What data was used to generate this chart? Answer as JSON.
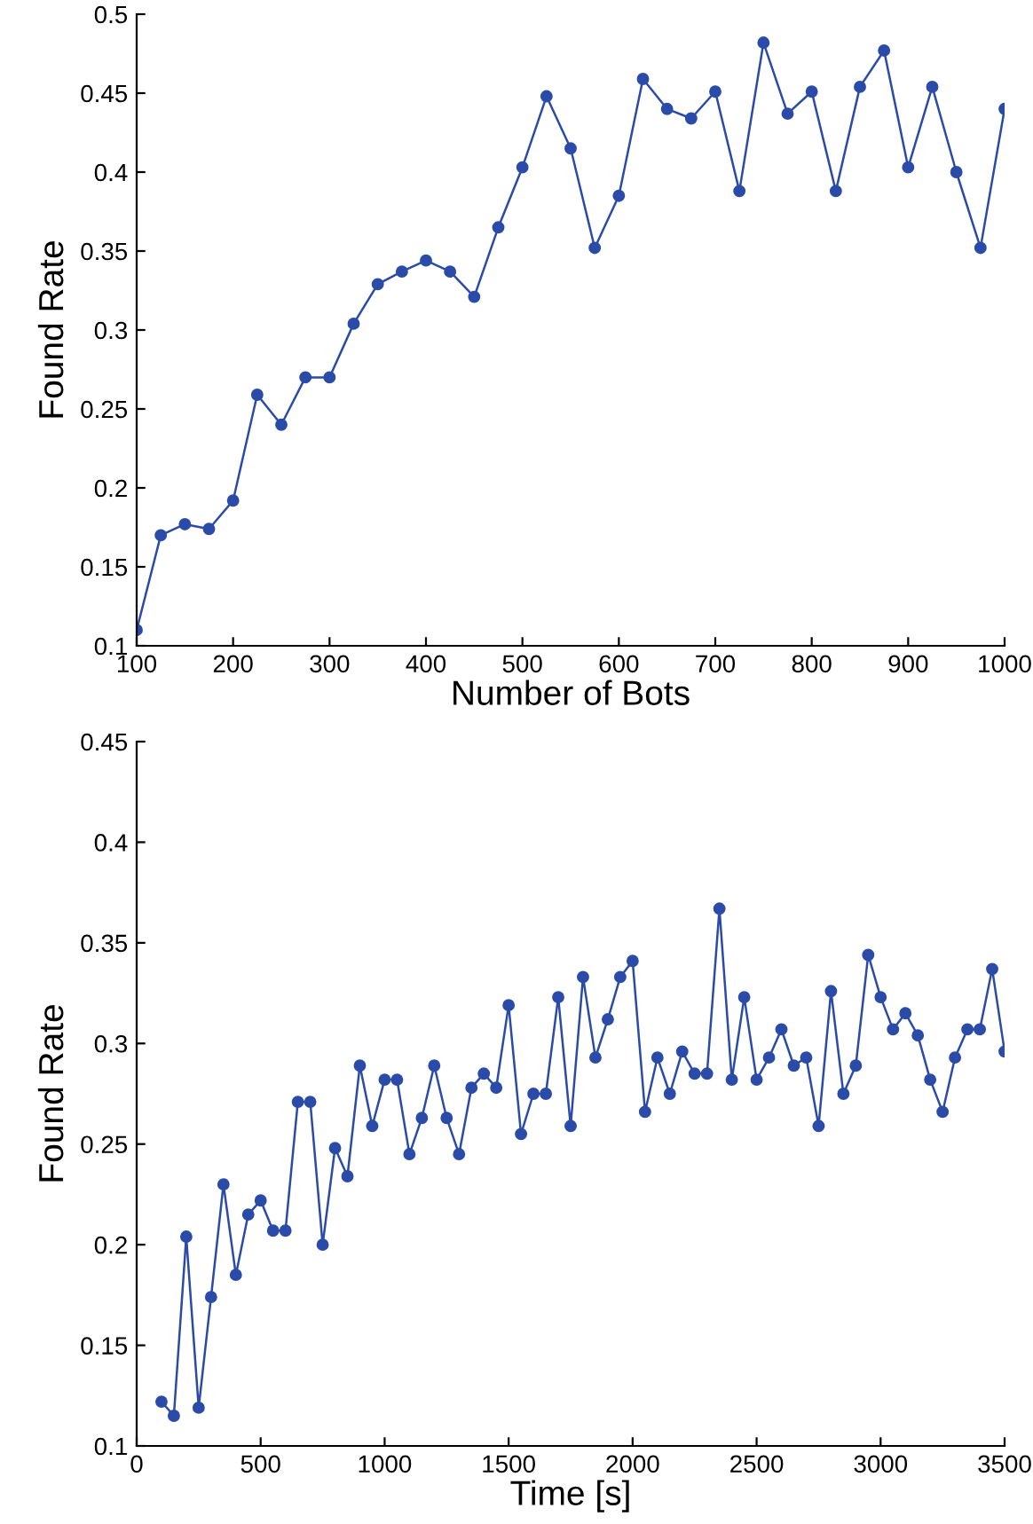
{
  "chart_data": [
    {
      "type": "line",
      "xlabel": "Number of Bots",
      "ylabel": "Found Rate",
      "marker": "circle",
      "line_style": "solid",
      "grid": false,
      "x": [
        100,
        125,
        150,
        175,
        200,
        225,
        250,
        275,
        300,
        325,
        350,
        375,
        400,
        425,
        450,
        475,
        500,
        525,
        550,
        575,
        600,
        625,
        650,
        675,
        700,
        725,
        750,
        775,
        800,
        825,
        850,
        875,
        900,
        925,
        950,
        975,
        1000
      ],
      "series": [
        {
          "color": "#2b4ba8",
          "values": [
            0.11,
            0.17,
            0.177,
            0.174,
            0.192,
            0.259,
            0.24,
            0.27,
            0.27,
            0.304,
            0.329,
            0.337,
            0.344,
            0.337,
            0.321,
            0.365,
            0.403,
            0.448,
            0.415,
            0.352,
            0.385,
            0.459,
            0.44,
            0.434,
            0.451,
            0.388,
            0.482,
            0.437,
            0.451,
            0.388,
            0.454,
            0.477,
            0.403,
            0.454,
            0.4,
            0.352,
            0.44
          ]
        }
      ],
      "xlim": [
        100,
        1000
      ],
      "xticks": [
        100,
        200,
        300,
        400,
        500,
        600,
        700,
        800,
        900,
        1000
      ],
      "ylim": [
        0.1,
        0.5
      ],
      "yticks": [
        0.1,
        0.15,
        0.2,
        0.25,
        0.3,
        0.35,
        0.4,
        0.45,
        0.5
      ]
    },
    {
      "type": "line",
      "xlabel": "Time [s]",
      "ylabel": "Found Rate",
      "marker": "circle",
      "line_style": "solid",
      "grid": false,
      "x": [
        100,
        150,
        200,
        250,
        300,
        350,
        400,
        450,
        500,
        550,
        600,
        650,
        700,
        750,
        800,
        850,
        900,
        950,
        1000,
        1050,
        1100,
        1150,
        1200,
        1250,
        1300,
        1350,
        1400,
        1450,
        1500,
        1550,
        1600,
        1650,
        1700,
        1750,
        1800,
        1850,
        1900,
        1950,
        2000,
        2050,
        2100,
        2150,
        2200,
        2250,
        2300,
        2350,
        2400,
        2450,
        2500,
        2550,
        2600,
        2650,
        2700,
        2750,
        2800,
        2850,
        2900,
        2950,
        3000,
        3050,
        3100,
        3150,
        3200,
        3250,
        3300,
        3350,
        3400,
        3450,
        3500
      ],
      "series": [
        {
          "color": "#2b4ba8",
          "values": [
            0.122,
            0.115,
            0.204,
            0.119,
            0.174,
            0.23,
            0.185,
            0.215,
            0.222,
            0.207,
            0.207,
            0.271,
            0.271,
            0.2,
            0.248,
            0.234,
            0.289,
            0.259,
            0.282,
            0.282,
            0.245,
            0.263,
            0.289,
            0.263,
            0.245,
            0.278,
            0.285,
            0.278,
            0.319,
            0.255,
            0.275,
            0.275,
            0.323,
            0.259,
            0.333,
            0.293,
            0.312,
            0.333,
            0.341,
            0.266,
            0.293,
            0.275,
            0.296,
            0.285,
            0.285,
            0.367,
            0.282,
            0.323,
            0.282,
            0.293,
            0.307,
            0.289,
            0.293,
            0.259,
            0.326,
            0.275,
            0.289,
            0.344,
            0.323,
            0.307,
            0.315,
            0.304,
            0.282,
            0.266,
            0.293,
            0.307,
            0.307,
            0.337,
            0.296
          ]
        }
      ],
      "xlim": [
        0,
        3500
      ],
      "xticks": [
        0,
        500,
        1000,
        1500,
        2000,
        2500,
        3000,
        3500
      ],
      "ylim": [
        0.1,
        0.45
      ],
      "yticks": [
        0.1,
        0.15,
        0.2,
        0.25,
        0.3,
        0.35,
        0.4,
        0.45
      ]
    }
  ]
}
